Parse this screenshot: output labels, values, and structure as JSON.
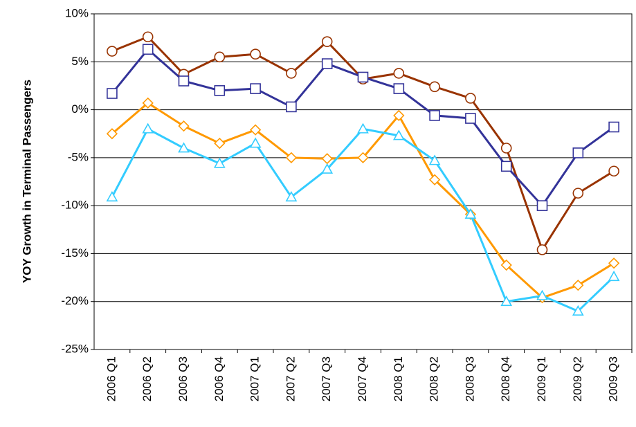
{
  "chart_data": {
    "type": "line",
    "y_label": "YOY Growth in Terminal Passengers",
    "categories": [
      "2006 Q1",
      "2006 Q2",
      "2006 Q3",
      "2006 Q4",
      "2007 Q1",
      "2007 Q2",
      "2007 Q3",
      "2007 Q4",
      "2008 Q1",
      "2008 Q2",
      "2008 Q3",
      "2008 Q4",
      "2009 Q1",
      "2009 Q2",
      "2009 Q3"
    ],
    "series": [
      {
        "color": "#993300",
        "marker": "circle",
        "values": [
          6.1,
          7.6,
          3.7,
          5.5,
          5.8,
          3.8,
          7.1,
          3.2,
          3.8,
          2.4,
          1.2,
          -4.0,
          -14.6,
          -8.7,
          -6.4
        ]
      },
      {
        "color": "#333399",
        "marker": "square",
        "values": [
          1.7,
          6.3,
          3.0,
          2.0,
          2.2,
          0.3,
          4.8,
          3.4,
          2.2,
          -0.6,
          -0.9,
          -5.9,
          -10.0,
          -4.5,
          -1.8
        ]
      },
      {
        "color": "#ff9900",
        "marker": "diamond",
        "values": [
          -2.5,
          0.7,
          -1.7,
          -3.5,
          -2.1,
          -5.0,
          -5.1,
          -5.0,
          -0.6,
          -7.3,
          -10.9,
          -16.2,
          -19.6,
          -18.3,
          -16.0
        ]
      },
      {
        "color": "#33ccff",
        "marker": "triangle",
        "values": [
          -9.1,
          -2.0,
          -4.0,
          -5.6,
          -3.5,
          -9.1,
          -6.2,
          -2.0,
          -2.7,
          -5.3,
          -10.9,
          -20.0,
          -19.4,
          -21.0,
          -17.4
        ]
      }
    ],
    "ylim": [
      -25,
      10
    ],
    "yticks": [
      {
        "value": -25,
        "label": "-25%"
      },
      {
        "value": -20,
        "label": "-20%"
      },
      {
        "value": -15,
        "label": "-15%"
      },
      {
        "value": -10,
        "label": "-10%"
      },
      {
        "value": -5,
        "label": "-5%"
      },
      {
        "value": 0,
        "label": "0%"
      },
      {
        "value": 5,
        "label": "5%"
      },
      {
        "value": 10,
        "label": "10%"
      }
    ],
    "grid": true
  }
}
